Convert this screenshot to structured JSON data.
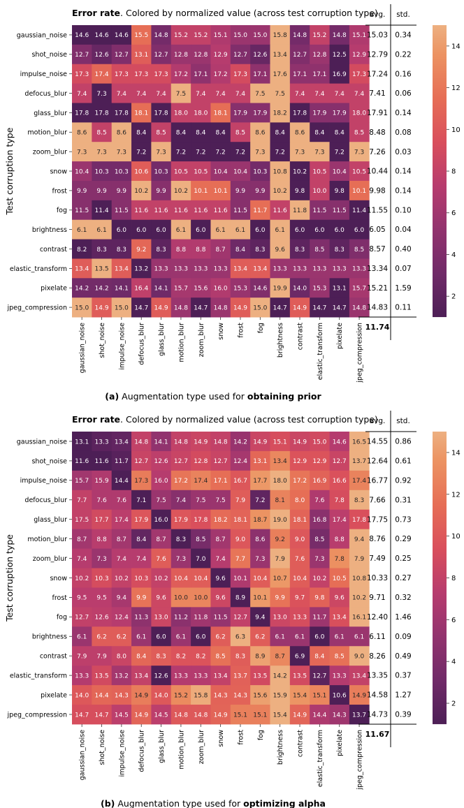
{
  "chart_data": [
    {
      "type": "heatmap",
      "panel_label": "(a)",
      "title_bold": "Error rate",
      "title_rest": ". Colored by normalized value (across test corruption type)",
      "xlabel_prefix": "Augmentation type used for ",
      "xlabel_bold": "obtaining prior",
      "ylabel": "Test corruption type",
      "stat_headers": [
        "avg.",
        "std."
      ],
      "rows": [
        "gaussian_noise",
        "shot_noise",
        "impulse_noise",
        "defocus_blur",
        "glass_blur",
        "motion_blur",
        "zoom_blur",
        "snow",
        "frost",
        "fog",
        "brightness",
        "contrast",
        "elastic_transform",
        "pixelate",
        "jpeg_compression"
      ],
      "columns": [
        "gaussian_noise",
        "shot_noise",
        "impulse_noise",
        "defocus_blur",
        "glass_blur",
        "motion_blur",
        "zoom_blur",
        "snow",
        "frost",
        "fog",
        "brightness",
        "contrast",
        "elastic_transform",
        "pixelate",
        "jpeg_compression"
      ],
      "values": [
        [
          14.6,
          14.6,
          14.6,
          15.5,
          14.8,
          15.2,
          15.2,
          15.1,
          15.0,
          15.0,
          15.8,
          14.8,
          15.2,
          14.8,
          15.1
        ],
        [
          12.7,
          12.6,
          12.7,
          13.1,
          12.7,
          12.8,
          12.8,
          12.9,
          12.7,
          12.6,
          13.4,
          12.7,
          12.8,
          12.5,
          12.9
        ],
        [
          17.3,
          17.4,
          17.3,
          17.3,
          17.3,
          17.2,
          17.1,
          17.2,
          17.3,
          17.1,
          17.6,
          17.1,
          17.1,
          16.9,
          17.3
        ],
        [
          7.4,
          7.3,
          7.4,
          7.4,
          7.4,
          7.5,
          7.4,
          7.4,
          7.4,
          7.5,
          7.5,
          7.4,
          7.4,
          7.4,
          7.4
        ],
        [
          17.8,
          17.8,
          17.8,
          18.1,
          17.8,
          18.0,
          18.0,
          18.1,
          17.9,
          17.9,
          18.2,
          17.8,
          17.9,
          17.9,
          18.0
        ],
        [
          8.6,
          8.5,
          8.6,
          8.4,
          8.5,
          8.4,
          8.4,
          8.4,
          8.5,
          8.6,
          8.4,
          8.6,
          8.4,
          8.4,
          8.5
        ],
        [
          7.3,
          7.3,
          7.3,
          7.2,
          7.3,
          7.2,
          7.2,
          7.2,
          7.2,
          7.3,
          7.2,
          7.3,
          7.3,
          7.2,
          7.3
        ],
        [
          10.4,
          10.3,
          10.3,
          10.6,
          10.3,
          10.5,
          10.5,
          10.4,
          10.4,
          10.3,
          10.8,
          10.2,
          10.5,
          10.4,
          10.5
        ],
        [
          9.9,
          9.9,
          9.9,
          10.2,
          9.9,
          10.2,
          10.1,
          10.1,
          9.9,
          9.9,
          10.2,
          9.8,
          10.0,
          9.8,
          10.1
        ],
        [
          11.5,
          11.4,
          11.5,
          11.6,
          11.6,
          11.6,
          11.6,
          11.6,
          11.5,
          11.7,
          11.6,
          11.8,
          11.5,
          11.5,
          11.4
        ],
        [
          6.1,
          6.1,
          6.0,
          6.0,
          6.0,
          6.1,
          6.0,
          6.1,
          6.1,
          6.0,
          6.1,
          6.0,
          6.0,
          6.0,
          6.0
        ],
        [
          8.2,
          8.3,
          8.3,
          9.2,
          8.3,
          8.8,
          8.8,
          8.7,
          8.4,
          8.3,
          9.6,
          8.3,
          8.5,
          8.3,
          8.5
        ],
        [
          13.4,
          13.5,
          13.4,
          13.2,
          13.3,
          13.3,
          13.3,
          13.3,
          13.4,
          13.4,
          13.3,
          13.3,
          13.3,
          13.3,
          13.3
        ],
        [
          14.2,
          14.2,
          14.1,
          16.4,
          14.1,
          15.7,
          15.6,
          16.0,
          15.3,
          14.6,
          19.9,
          14.0,
          15.3,
          13.1,
          15.7
        ],
        [
          15.0,
          14.9,
          15.0,
          14.7,
          14.9,
          14.8,
          14.7,
          14.8,
          14.9,
          15.0,
          14.7,
          14.9,
          14.7,
          14.7,
          14.8
        ]
      ],
      "avg": [
        "15.03",
        "12.79",
        "17.24",
        "7.41",
        "17.91",
        "8.48",
        "7.26",
        "10.44",
        "9.98",
        "11.55",
        "6.05",
        "8.57",
        "13.34",
        "15.21",
        "14.83"
      ],
      "std": [
        "0.34",
        "0.22",
        "0.16",
        "0.06",
        "0.14",
        "0.08",
        "0.03",
        "0.14",
        "0.14",
        "0.10",
        "0.04",
        "0.40",
        "0.07",
        "1.59",
        "0.11"
      ],
      "overall_avg": "11.74",
      "colorbar": {
        "min": 1,
        "max": 15,
        "ticks": [
          2,
          4,
          6,
          8,
          10,
          12,
          14
        ]
      }
    },
    {
      "type": "heatmap",
      "panel_label": "(b)",
      "title_bold": "Error rate",
      "title_rest": ". Colored by normalized value (across test corruption type)",
      "xlabel_prefix": "Augmentation type used for ",
      "xlabel_bold": "optimizing alpha",
      "ylabel": "Test corruption type",
      "stat_headers": [
        "avg.",
        "std."
      ],
      "rows": [
        "gaussian_noise",
        "shot_noise",
        "impulse_noise",
        "defocus_blur",
        "glass_blur",
        "motion_blur",
        "zoom_blur",
        "snow",
        "frost",
        "fog",
        "brightness",
        "contrast",
        "elastic_transform",
        "pixelate",
        "jpeg_compression"
      ],
      "columns": [
        "gaussian_noise",
        "shot_noise",
        "impulse_noise",
        "defocus_blur",
        "glass_blur",
        "motion_blur",
        "zoom_blur",
        "snow",
        "frost",
        "fog",
        "brightness",
        "contrast",
        "elastic_transform",
        "pixelate",
        "jpeg_compression"
      ],
      "values": [
        [
          13.1,
          13.3,
          13.4,
          14.8,
          14.1,
          14.8,
          14.9,
          14.8,
          14.2,
          14.9,
          15.1,
          14.9,
          15.0,
          14.6,
          16.5
        ],
        [
          11.6,
          11.6,
          11.7,
          12.7,
          12.6,
          12.7,
          12.8,
          12.7,
          12.4,
          13.1,
          13.4,
          12.9,
          12.9,
          12.7,
          13.7
        ],
        [
          15.7,
          15.9,
          14.4,
          17.3,
          16.0,
          17.2,
          17.4,
          17.1,
          16.7,
          17.7,
          18.0,
          17.2,
          16.9,
          16.6,
          17.4
        ],
        [
          7.7,
          7.6,
          7.6,
          7.1,
          7.5,
          7.4,
          7.5,
          7.5,
          7.9,
          7.2,
          8.1,
          8.0,
          7.6,
          7.8,
          8.3
        ],
        [
          17.5,
          17.7,
          17.4,
          17.9,
          16.0,
          17.9,
          17.8,
          18.2,
          18.1,
          18.7,
          19.0,
          18.1,
          16.8,
          17.4,
          17.8
        ],
        [
          8.7,
          8.8,
          8.7,
          8.4,
          8.7,
          8.3,
          8.5,
          8.7,
          9.0,
          8.6,
          9.2,
          9.0,
          8.5,
          8.8,
          9.4
        ],
        [
          7.4,
          7.3,
          7.4,
          7.4,
          7.6,
          7.3,
          7.0,
          7.4,
          7.7,
          7.3,
          7.9,
          7.6,
          7.3,
          7.8,
          7.9
        ],
        [
          10.2,
          10.3,
          10.2,
          10.3,
          10.2,
          10.4,
          10.4,
          9.6,
          10.1,
          10.4,
          10.7,
          10.4,
          10.2,
          10.5,
          10.8
        ],
        [
          9.5,
          9.5,
          9.4,
          9.9,
          9.6,
          10.0,
          10.0,
          9.6,
          8.9,
          10.1,
          9.9,
          9.7,
          9.8,
          9.6,
          10.2
        ],
        [
          12.7,
          12.6,
          12.4,
          11.3,
          13.0,
          11.2,
          11.8,
          11.5,
          12.7,
          9.4,
          13.0,
          13.3,
          11.7,
          13.4,
          16.1
        ],
        [
          6.1,
          6.2,
          6.2,
          6.1,
          6.0,
          6.1,
          6.0,
          6.2,
          6.3,
          6.2,
          6.1,
          6.1,
          6.0,
          6.1,
          6.1
        ],
        [
          7.9,
          7.9,
          8.0,
          8.4,
          8.3,
          8.2,
          8.2,
          8.5,
          8.3,
          8.9,
          8.7,
          6.9,
          8.4,
          8.5,
          9.0
        ],
        [
          13.3,
          13.5,
          13.2,
          13.4,
          12.6,
          13.3,
          13.3,
          13.4,
          13.7,
          13.5,
          14.2,
          13.5,
          12.7,
          13.3,
          13.4
        ],
        [
          14.0,
          14.4,
          14.3,
          14.9,
          14.0,
          15.2,
          15.8,
          14.3,
          14.3,
          15.6,
          15.9,
          15.4,
          15.1,
          10.6,
          14.9
        ],
        [
          14.7,
          14.7,
          14.5,
          14.9,
          14.5,
          14.8,
          14.8,
          14.9,
          15.1,
          15.1,
          15.4,
          14.9,
          14.4,
          14.3,
          13.7
        ]
      ],
      "avg": [
        "14.55",
        "12.64",
        "16.77",
        "7.66",
        "17.75",
        "8.76",
        "7.49",
        "10.33",
        "9.71",
        "12.40",
        "6.11",
        "8.26",
        "13.35",
        "14.58",
        "14.73"
      ],
      "std": [
        "0.86",
        "0.61",
        "0.92",
        "0.31",
        "0.73",
        "0.29",
        "0.25",
        "0.27",
        "0.32",
        "1.46",
        "0.09",
        "0.49",
        "0.37",
        "1.27",
        "0.39"
      ],
      "overall_avg": "11.67",
      "colorbar": {
        "min": 1,
        "max": 15,
        "ticks": [
          2,
          4,
          6,
          8,
          10,
          12,
          14
        ]
      }
    }
  ]
}
